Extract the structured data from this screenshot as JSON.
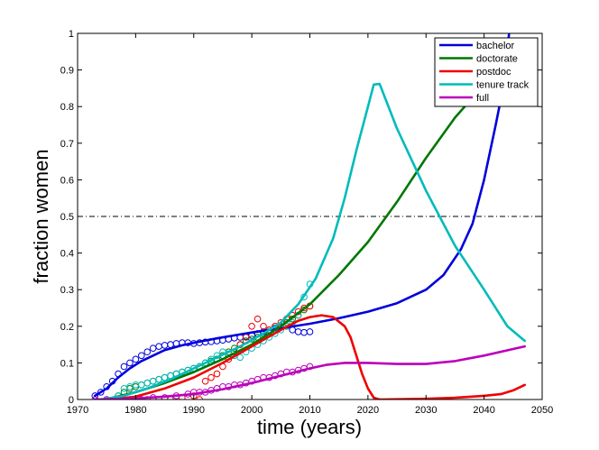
{
  "chart_data": {
    "type": "line",
    "title": "",
    "xlabel": "time (years)",
    "ylabel": "fraction women",
    "xlim": [
      1970,
      2050
    ],
    "ylim": [
      0,
      1
    ],
    "xticks": [
      1970,
      1980,
      1990,
      2000,
      2010,
      2020,
      2030,
      2040,
      2050
    ],
    "yticks": [
      0,
      0.1,
      0.2,
      0.3,
      0.4,
      0.5,
      0.6,
      0.7,
      0.8,
      0.9,
      1
    ],
    "xtick_labels": [
      "1970",
      "1980",
      "1990",
      "2000",
      "2010",
      "2020",
      "2030",
      "2040",
      "2050"
    ],
    "ytick_labels": [
      "0",
      "0.1",
      "0.2",
      "0.3",
      "0.4",
      "0.5",
      "0.6",
      "0.7",
      "0.8",
      "0.9",
      "1"
    ],
    "grid": false,
    "legend_position": "top-right",
    "reference_line": {
      "y": 0.5,
      "style": "dash-dot",
      "color": "#000000"
    },
    "series": [
      {
        "name": "bachelor",
        "color": "#0000dd",
        "model": [
          [
            1973,
            0.01
          ],
          [
            1975,
            0.03
          ],
          [
            1977,
            0.06
          ],
          [
            1979,
            0.085
          ],
          [
            1981,
            0.105
          ],
          [
            1983,
            0.12
          ],
          [
            1985,
            0.135
          ],
          [
            1988,
            0.148
          ],
          [
            1991,
            0.158
          ],
          [
            1994,
            0.167
          ],
          [
            1997,
            0.175
          ],
          [
            2000,
            0.183
          ],
          [
            2003,
            0.19
          ],
          [
            2006,
            0.197
          ],
          [
            2010,
            0.207
          ],
          [
            2015,
            0.222
          ],
          [
            2020,
            0.24
          ],
          [
            2025,
            0.263
          ],
          [
            2030,
            0.3
          ],
          [
            2033,
            0.34
          ],
          [
            2036,
            0.41
          ],
          [
            2038,
            0.48
          ],
          [
            2040,
            0.6
          ],
          [
            2042,
            0.75
          ],
          [
            2043.5,
            0.87
          ],
          [
            2044.3,
            1.0
          ]
        ],
        "observed": [
          [
            1973,
            0.01
          ],
          [
            1974,
            0.02
          ],
          [
            1975,
            0.035
          ],
          [
            1976,
            0.05
          ],
          [
            1977,
            0.07
          ],
          [
            1978,
            0.09
          ],
          [
            1979,
            0.1
          ],
          [
            1980,
            0.11
          ],
          [
            1981,
            0.12
          ],
          [
            1982,
            0.13
          ],
          [
            1983,
            0.14
          ],
          [
            1984,
            0.145
          ],
          [
            1985,
            0.148
          ],
          [
            1986,
            0.15
          ],
          [
            1987,
            0.153
          ],
          [
            1988,
            0.155
          ],
          [
            1989,
            0.155
          ],
          [
            1990,
            0.153
          ],
          [
            1991,
            0.155
          ],
          [
            1992,
            0.157
          ],
          [
            1993,
            0.158
          ],
          [
            1994,
            0.16
          ],
          [
            1995,
            0.162
          ],
          [
            1996,
            0.165
          ],
          [
            1997,
            0.168
          ],
          [
            1998,
            0.17
          ],
          [
            1999,
            0.172
          ],
          [
            2000,
            0.175
          ],
          [
            2001,
            0.18
          ],
          [
            2002,
            0.185
          ],
          [
            2003,
            0.19
          ],
          [
            2004,
            0.195
          ],
          [
            2005,
            0.198
          ],
          [
            2006,
            0.2
          ],
          [
            2007,
            0.19
          ],
          [
            2008,
            0.185
          ],
          [
            2009,
            0.183
          ],
          [
            2010,
            0.185
          ]
        ]
      },
      {
        "name": "doctorate",
        "color": "#007700",
        "model": [
          [
            1976,
            0.005
          ],
          [
            1980,
            0.02
          ],
          [
            1985,
            0.045
          ],
          [
            1990,
            0.075
          ],
          [
            1995,
            0.11
          ],
          [
            2000,
            0.15
          ],
          [
            2005,
            0.2
          ],
          [
            2010,
            0.26
          ],
          [
            2015,
            0.34
          ],
          [
            2020,
            0.43
          ],
          [
            2025,
            0.54
          ],
          [
            2030,
            0.66
          ],
          [
            2035,
            0.77
          ],
          [
            2040,
            0.86
          ],
          [
            2042,
            0.9
          ],
          [
            2044,
            0.935
          ],
          [
            2047,
            0.98
          ]
        ],
        "observed": [
          [
            1977,
            0.01
          ],
          [
            1978,
            0.02
          ],
          [
            1979,
            0.03
          ],
          [
            1980,
            0.035
          ],
          [
            1981,
            0.04
          ],
          [
            1982,
            0.045
          ],
          [
            1983,
            0.05
          ],
          [
            1984,
            0.055
          ],
          [
            1985,
            0.06
          ],
          [
            1986,
            0.065
          ],
          [
            1987,
            0.07
          ],
          [
            1988,
            0.075
          ],
          [
            1989,
            0.08
          ],
          [
            1990,
            0.085
          ],
          [
            1991,
            0.09
          ],
          [
            1992,
            0.1
          ],
          [
            1993,
            0.105
          ],
          [
            1994,
            0.11
          ],
          [
            1995,
            0.12
          ],
          [
            1996,
            0.13
          ],
          [
            1997,
            0.14
          ],
          [
            1998,
            0.15
          ],
          [
            1999,
            0.16
          ],
          [
            2000,
            0.165
          ],
          [
            2001,
            0.17
          ],
          [
            2002,
            0.18
          ],
          [
            2003,
            0.185
          ],
          [
            2004,
            0.19
          ],
          [
            2005,
            0.2
          ],
          [
            2006,
            0.21
          ],
          [
            2007,
            0.22
          ],
          [
            2008,
            0.23
          ],
          [
            2009,
            0.245
          ],
          [
            2010,
            0.255
          ]
        ]
      },
      {
        "name": "postdoc",
        "color": "#ee0000",
        "model": [
          [
            1976,
            0.0
          ],
          [
            1980,
            0.008
          ],
          [
            1985,
            0.03
          ],
          [
            1990,
            0.06
          ],
          [
            1995,
            0.1
          ],
          [
            2000,
            0.145
          ],
          [
            2005,
            0.19
          ],
          [
            2008,
            0.215
          ],
          [
            2010,
            0.225
          ],
          [
            2012,
            0.23
          ],
          [
            2014,
            0.225
          ],
          [
            2016,
            0.2
          ],
          [
            2017,
            0.17
          ],
          [
            2018,
            0.12
          ],
          [
            2019,
            0.07
          ],
          [
            2020,
            0.03
          ],
          [
            2021,
            0.005
          ],
          [
            2022,
            0.0
          ],
          [
            2030,
            0.002
          ],
          [
            2035,
            0.005
          ],
          [
            2040,
            0.01
          ],
          [
            2043,
            0.015
          ],
          [
            2045,
            0.025
          ],
          [
            2047,
            0.04
          ]
        ],
        "observed": [
          [
            1978,
            0.0
          ],
          [
            1980,
            0.0
          ],
          [
            1982,
            0.0
          ],
          [
            1984,
            0.0
          ],
          [
            1986,
            0.0
          ],
          [
            1988,
            0.005
          ],
          [
            1990,
            0.01
          ],
          [
            1991,
            0.0
          ],
          [
            1992,
            0.05
          ],
          [
            1993,
            0.06
          ],
          [
            1994,
            0.07
          ],
          [
            1995,
            0.09
          ],
          [
            1996,
            0.11
          ],
          [
            1997,
            0.13
          ],
          [
            1998,
            0.15
          ],
          [
            1999,
            0.17
          ],
          [
            2000,
            0.2
          ],
          [
            2001,
            0.22
          ],
          [
            2002,
            0.2
          ],
          [
            2003,
            0.19
          ],
          [
            2004,
            0.2
          ],
          [
            2005,
            0.21
          ],
          [
            2006,
            0.22
          ],
          [
            2007,
            0.23
          ],
          [
            2008,
            0.24
          ],
          [
            2009,
            0.25
          ],
          [
            2010,
            0.255
          ]
        ]
      },
      {
        "name": "tenure track",
        "color": "#00bbbb",
        "model": [
          [
            1974,
            0.0
          ],
          [
            1978,
            0.01
          ],
          [
            1982,
            0.03
          ],
          [
            1986,
            0.055
          ],
          [
            1990,
            0.085
          ],
          [
            1994,
            0.115
          ],
          [
            1998,
            0.145
          ],
          [
            2002,
            0.18
          ],
          [
            2005,
            0.21
          ],
          [
            2008,
            0.26
          ],
          [
            2011,
            0.33
          ],
          [
            2014,
            0.44
          ],
          [
            2016,
            0.55
          ],
          [
            2018,
            0.68
          ],
          [
            2020,
            0.8
          ],
          [
            2021,
            0.86
          ],
          [
            2022,
            0.862
          ],
          [
            2025,
            0.74
          ],
          [
            2030,
            0.57
          ],
          [
            2035,
            0.42
          ],
          [
            2040,
            0.3
          ],
          [
            2044,
            0.2
          ],
          [
            2047,
            0.16
          ]
        ],
        "observed": [
          [
            1975,
            0.0
          ],
          [
            1977,
            0.01
          ],
          [
            1978,
            0.03
          ],
          [
            1979,
            0.035
          ],
          [
            1980,
            0.04
          ],
          [
            1981,
            0.04
          ],
          [
            1982,
            0.045
          ],
          [
            1983,
            0.05
          ],
          [
            1984,
            0.055
          ],
          [
            1985,
            0.06
          ],
          [
            1986,
            0.065
          ],
          [
            1987,
            0.07
          ],
          [
            1988,
            0.075
          ],
          [
            1989,
            0.08
          ],
          [
            1990,
            0.085
          ],
          [
            1991,
            0.09
          ],
          [
            1992,
            0.1
          ],
          [
            1993,
            0.11
          ],
          [
            1994,
            0.12
          ],
          [
            1995,
            0.13
          ],
          [
            1996,
            0.125
          ],
          [
            1997,
            0.12
          ],
          [
            1998,
            0.115
          ],
          [
            1999,
            0.13
          ],
          [
            2000,
            0.14
          ],
          [
            2001,
            0.15
          ],
          [
            2002,
            0.16
          ],
          [
            2003,
            0.17
          ],
          [
            2004,
            0.18
          ],
          [
            2005,
            0.19
          ],
          [
            2006,
            0.2
          ],
          [
            2007,
            0.21
          ],
          [
            2008,
            0.23
          ],
          [
            2009,
            0.28
          ],
          [
            2010,
            0.315
          ]
        ]
      },
      {
        "name": "full",
        "color": "#bb00bb",
        "model": [
          [
            1973,
            0.0
          ],
          [
            1980,
            0.003
          ],
          [
            1985,
            0.008
          ],
          [
            1990,
            0.015
          ],
          [
            1995,
            0.028
          ],
          [
            2000,
            0.045
          ],
          [
            2005,
            0.065
          ],
          [
            2010,
            0.085
          ],
          [
            2013,
            0.095
          ],
          [
            2016,
            0.1
          ],
          [
            2020,
            0.1
          ],
          [
            2025,
            0.097
          ],
          [
            2030,
            0.097
          ],
          [
            2035,
            0.105
          ],
          [
            2040,
            0.12
          ],
          [
            2045,
            0.138
          ],
          [
            2047,
            0.145
          ]
        ],
        "observed": [
          [
            1973,
            0.0
          ],
          [
            1975,
            0.0
          ],
          [
            1977,
            0.0
          ],
          [
            1979,
            0.0
          ],
          [
            1981,
            0.0
          ],
          [
            1983,
            0.005
          ],
          [
            1985,
            0.005
          ],
          [
            1987,
            0.01
          ],
          [
            1989,
            0.015
          ],
          [
            1990,
            0.02
          ],
          [
            1991,
            0.02
          ],
          [
            1992,
            0.02
          ],
          [
            1993,
            0.025
          ],
          [
            1994,
            0.03
          ],
          [
            1995,
            0.035
          ],
          [
            1996,
            0.035
          ],
          [
            1997,
            0.04
          ],
          [
            1998,
            0.04
          ],
          [
            1999,
            0.045
          ],
          [
            2000,
            0.05
          ],
          [
            2001,
            0.055
          ],
          [
            2002,
            0.06
          ],
          [
            2003,
            0.06
          ],
          [
            2004,
            0.065
          ],
          [
            2005,
            0.07
          ],
          [
            2006,
            0.075
          ],
          [
            2007,
            0.075
          ],
          [
            2008,
            0.08
          ],
          [
            2009,
            0.085
          ],
          [
            2010,
            0.09
          ]
        ]
      }
    ]
  }
}
